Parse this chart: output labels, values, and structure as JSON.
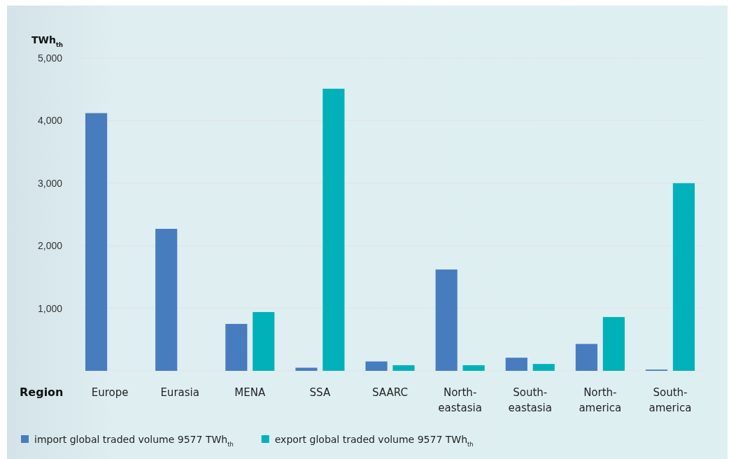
{
  "chart_data": {
    "type": "bar",
    "xlabel": "Region",
    "ylabel": "TWh$_{th}$",
    "categories": [
      "Europe",
      "Eurasia",
      "MENA",
      "SSA",
      "SAARC",
      "North-eastasia",
      "South-eastasia",
      "North-america",
      "South-america"
    ],
    "series": [
      {
        "name": "import global traded volume 9577 TWh$_{th}$",
        "color": "#477cbf",
        "values": [
          4120,
          2270,
          750,
          50,
          150,
          1620,
          210,
          430,
          20
        ]
      },
      {
        "name": "export global traded volume 9577 TWh$_{th}$",
        "color": "#00b1b9",
        "values": [
          0,
          0,
          940,
          4510,
          90,
          90,
          110,
          860,
          3000
        ]
      }
    ],
    "ylim": [
      0,
      5000
    ],
    "yticks": [
      {
        "value": 1000,
        "label": "1,000"
      },
      {
        "value": 2000,
        "label": "2,000"
      },
      {
        "value": 3000,
        "label": "3,000"
      },
      {
        "value": 4000,
        "label": "4,000"
      },
      {
        "value": 5000,
        "label": "5,000"
      }
    ],
    "grid": "y",
    "legend": "bottom"
  }
}
